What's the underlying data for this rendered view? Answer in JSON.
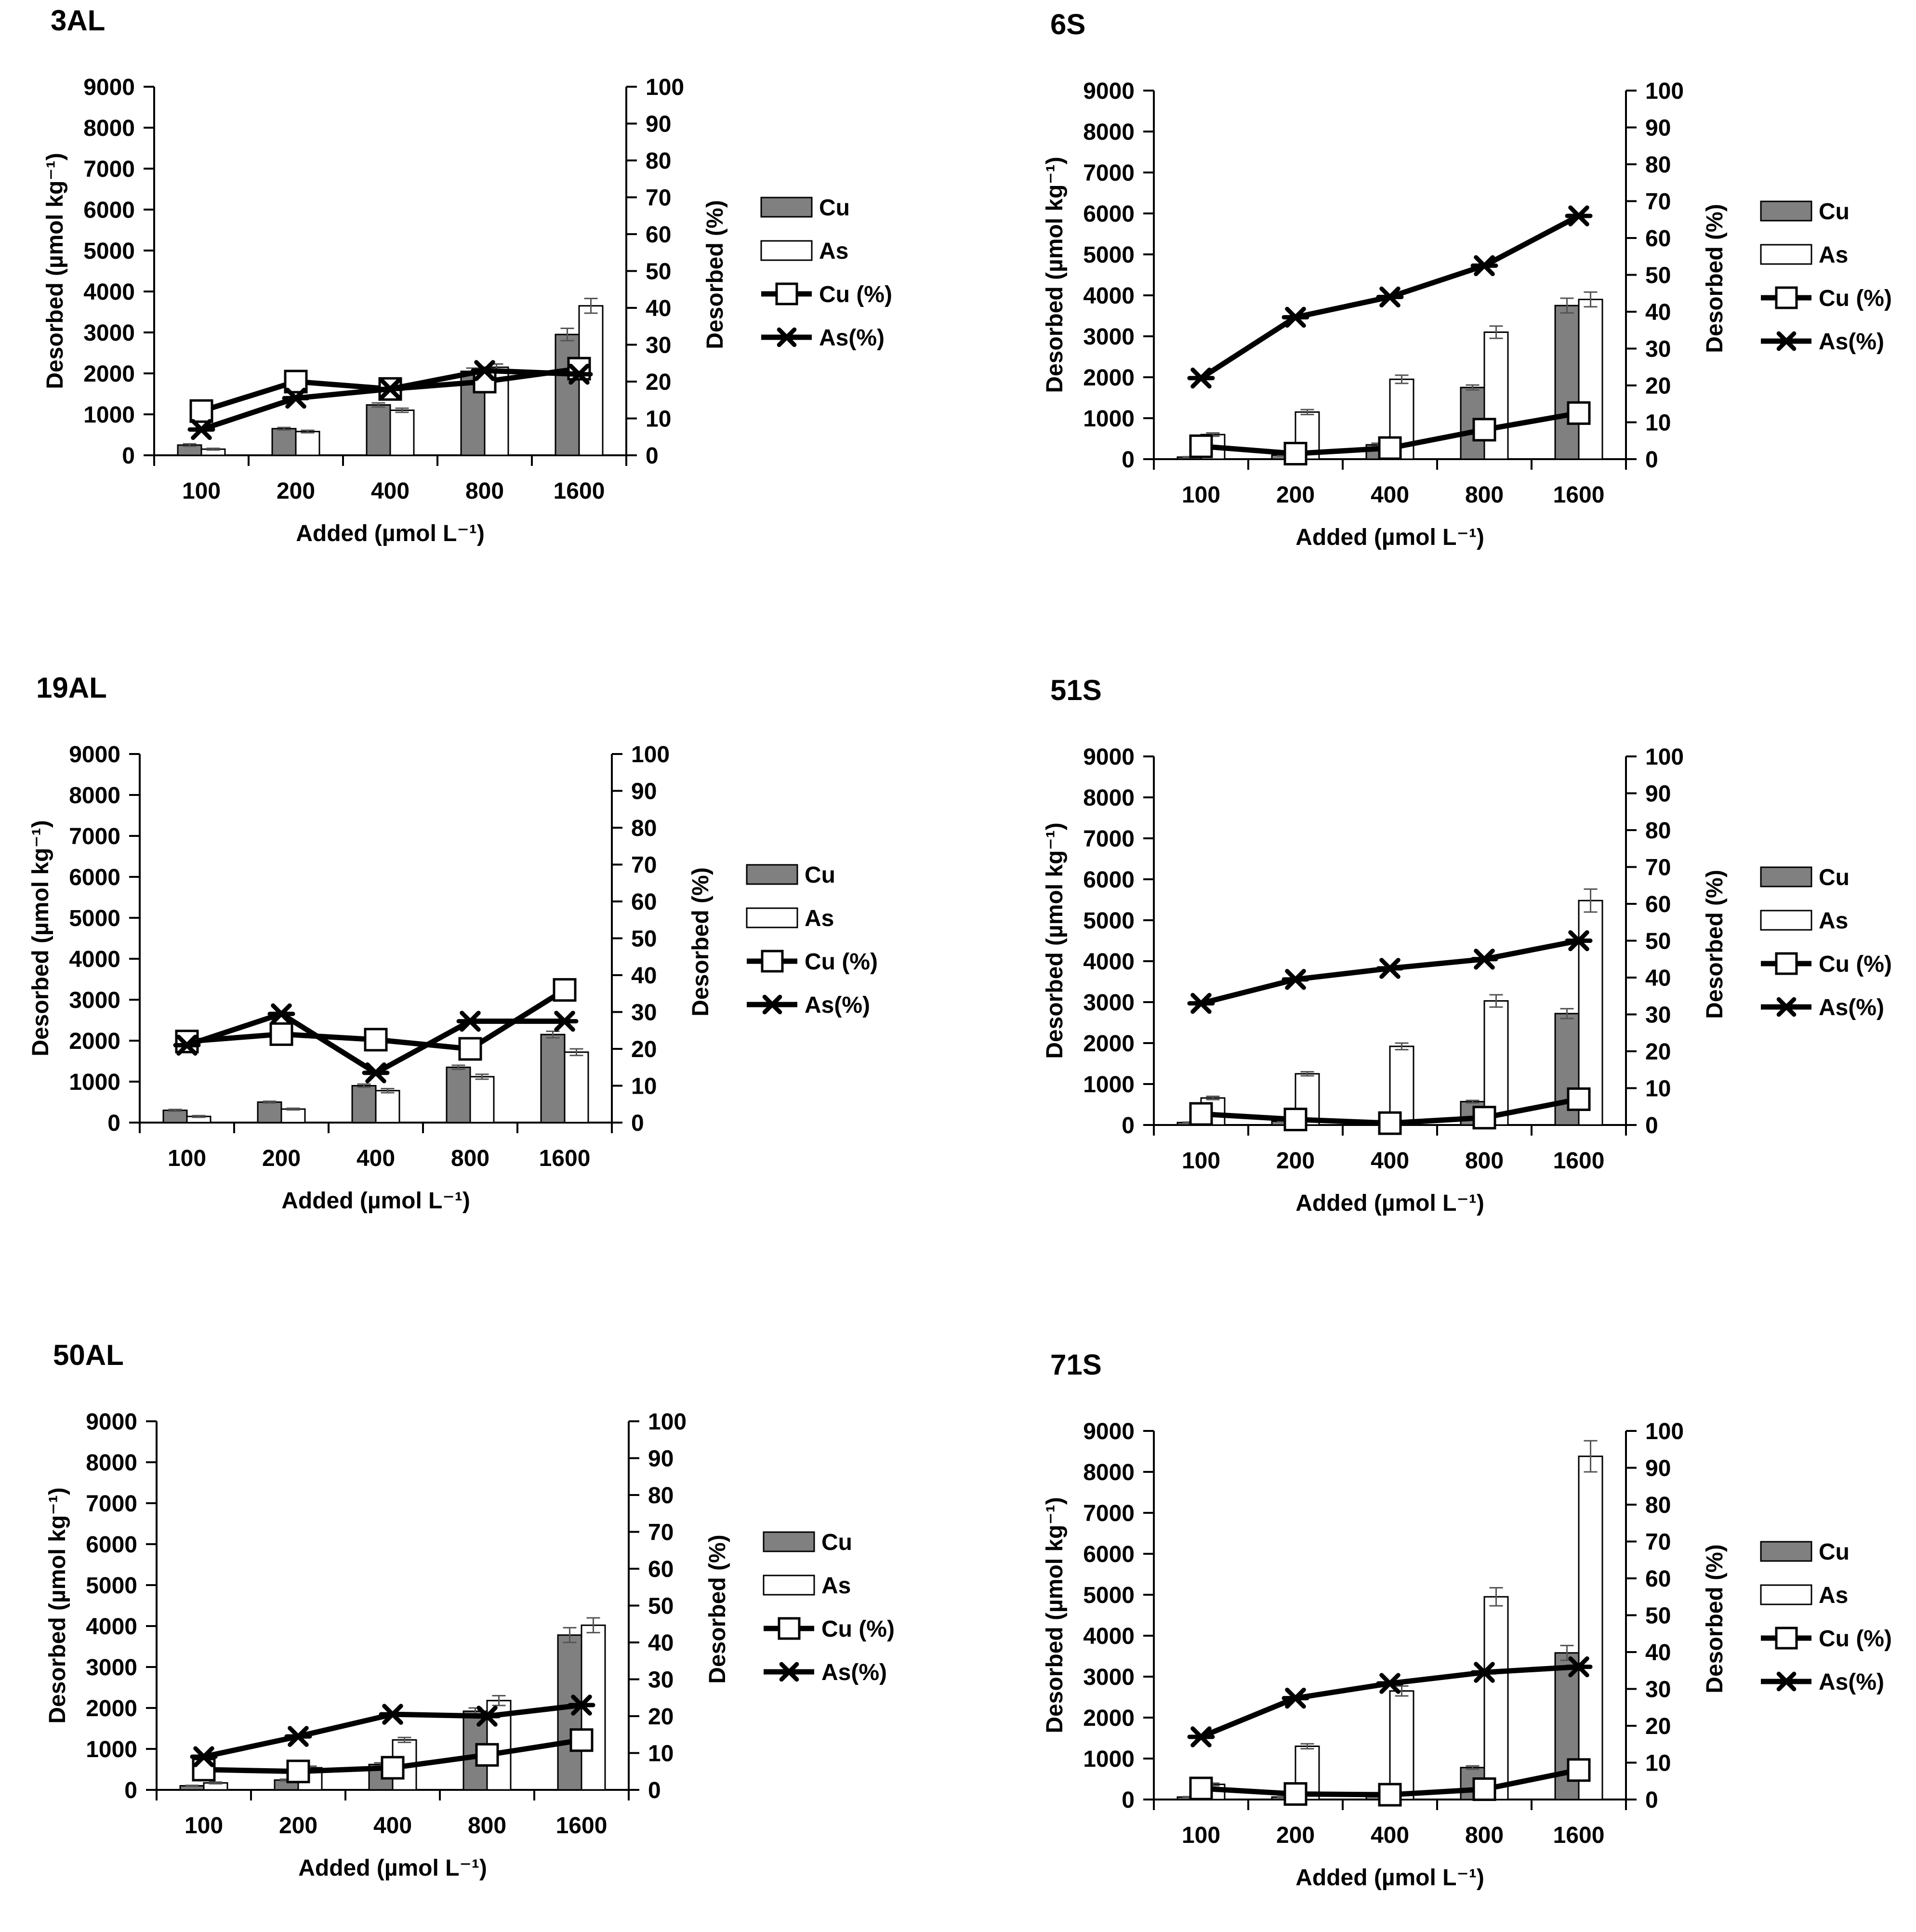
{
  "figure": {
    "legend": {
      "cu": "Cu",
      "as": "As",
      "cu_pct": "Cu (%)",
      "as_pct": "As(%)"
    },
    "colors": {
      "cu_bar": "#808080",
      "as_bar": "#ffffff",
      "line": "#000000",
      "axis": "#000000"
    }
  },
  "chart_data": [
    {
      "id": "3AL",
      "title": "3AL",
      "type": "bar",
      "categories": [
        "100",
        "200",
        "400",
        "800",
        "1600"
      ],
      "xlabel": "Added (µmol L⁻¹)",
      "ylabel": "Desorbed (µmol kg⁻¹)",
      "y2label": "Desorbed (%)",
      "ylim": [
        0,
        9000
      ],
      "y2lim": [
        0,
        100
      ],
      "yticks": [
        "0",
        "1000",
        "2000",
        "3000",
        "4000",
        "5000",
        "6000",
        "7000",
        "8000",
        "9000"
      ],
      "y2ticks": [
        "0",
        "10",
        "20",
        "30",
        "40",
        "50",
        "60",
        "70",
        "80",
        "90",
        "100"
      ],
      "series": [
        {
          "name": "Cu",
          "kind": "bar",
          "axis": "left",
          "values": [
            250,
            650,
            1230,
            2050,
            2950
          ],
          "errors": [
            30,
            30,
            50,
            80,
            150
          ]
        },
        {
          "name": "As",
          "kind": "bar",
          "axis": "left",
          "values": [
            150,
            580,
            1100,
            2150,
            3650
          ],
          "errors": [
            20,
            30,
            50,
            80,
            180
          ]
        },
        {
          "name": "Cu (%)",
          "kind": "line",
          "axis": "right",
          "marker": "square",
          "values": [
            12,
            20,
            18,
            20,
            23.5
          ]
        },
        {
          "name": "As(%)",
          "kind": "line",
          "axis": "right",
          "marker": "star",
          "values": [
            7,
            15.5,
            18,
            23,
            22
          ]
        }
      ]
    },
    {
      "id": "6S",
      "title": "6S",
      "type": "bar",
      "categories": [
        "100",
        "200",
        "400",
        "800",
        "1600"
      ],
      "xlabel": "Added (µmol L⁻¹)",
      "ylabel": "Desorbed (µmol kg⁻¹)",
      "y2label": "Desorbed (%)",
      "ylim": [
        0,
        9000
      ],
      "y2lim": [
        0,
        100
      ],
      "yticks": [
        "0",
        "1000",
        "2000",
        "3000",
        "4000",
        "5000",
        "6000",
        "7000",
        "8000",
        "9000"
      ],
      "y2ticks": [
        "0",
        "10",
        "20",
        "30",
        "40",
        "50",
        "60",
        "70",
        "80",
        "90",
        "100"
      ],
      "series": [
        {
          "name": "Cu",
          "kind": "bar",
          "axis": "left",
          "values": [
            50,
            100,
            350,
            1750,
            3750
          ],
          "errors": [
            10,
            20,
            40,
            60,
            180
          ]
        },
        {
          "name": "As",
          "kind": "bar",
          "axis": "left",
          "values": [
            600,
            1150,
            1950,
            3100,
            3900
          ],
          "errors": [
            40,
            60,
            100,
            150,
            180
          ]
        },
        {
          "name": "Cu (%)",
          "kind": "line",
          "axis": "right",
          "marker": "square",
          "values": [
            3.5,
            1.5,
            3,
            8,
            12.5
          ]
        },
        {
          "name": "As(%)",
          "kind": "line",
          "axis": "right",
          "marker": "star",
          "values": [
            22,
            38.5,
            44,
            52.5,
            66
          ]
        }
      ]
    },
    {
      "id": "19AL",
      "title": "19AL",
      "type": "bar",
      "categories": [
        "100",
        "200",
        "400",
        "800",
        "1600"
      ],
      "xlabel": "Added (µmol L⁻¹)",
      "ylabel": "Desorbed (µmol kg⁻¹)",
      "y2label": "Desorbed (%)",
      "ylim": [
        0,
        9000
      ],
      "y2lim": [
        0,
        100
      ],
      "yticks": [
        "0",
        "1000",
        "2000",
        "3000",
        "4000",
        "5000",
        "6000",
        "7000",
        "8000",
        "9000"
      ],
      "y2ticks": [
        "0",
        "10",
        "20",
        "30",
        "40",
        "50",
        "60",
        "70",
        "80",
        "90",
        "100"
      ],
      "series": [
        {
          "name": "Cu",
          "kind": "bar",
          "axis": "left",
          "values": [
            300,
            500,
            900,
            1350,
            2150
          ],
          "errors": [
            20,
            20,
            40,
            50,
            80
          ]
        },
        {
          "name": "As",
          "kind": "bar",
          "axis": "left",
          "values": [
            150,
            330,
            780,
            1120,
            1720
          ],
          "errors": [
            20,
            20,
            50,
            60,
            80
          ]
        },
        {
          "name": "Cu (%)",
          "kind": "line",
          "axis": "right",
          "marker": "square",
          "values": [
            22,
            24,
            22.5,
            20,
            36
          ]
        },
        {
          "name": "As(%)",
          "kind": "line",
          "axis": "right",
          "marker": "star",
          "values": [
            21,
            29.5,
            13.5,
            27.5,
            27.5
          ]
        }
      ]
    },
    {
      "id": "51S",
      "title": "51S",
      "type": "bar",
      "categories": [
        "100",
        "200",
        "400",
        "800",
        "1600"
      ],
      "xlabel": "Added (µmol L⁻¹)",
      "ylabel": "Desorbed (µmol kg⁻¹)",
      "y2label": "Desorbed (%)",
      "ylim": [
        0,
        9000
      ],
      "y2lim": [
        0,
        100
      ],
      "yticks": [
        "0",
        "1000",
        "2000",
        "3000",
        "4000",
        "5000",
        "6000",
        "7000",
        "8000",
        "9000"
      ],
      "y2ticks": [
        "0",
        "10",
        "20",
        "30",
        "40",
        "50",
        "60",
        "70",
        "80",
        "90",
        "100"
      ],
      "series": [
        {
          "name": "Cu",
          "kind": "bar",
          "axis": "left",
          "values": [
            60,
            90,
            70,
            570,
            2720
          ],
          "errors": [
            10,
            10,
            10,
            30,
            120
          ]
        },
        {
          "name": "As",
          "kind": "bar",
          "axis": "left",
          "values": [
            660,
            1250,
            1920,
            3030,
            5480
          ],
          "errors": [
            40,
            50,
            80,
            150,
            280
          ]
        },
        {
          "name": "Cu (%)",
          "kind": "line",
          "axis": "right",
          "marker": "square",
          "values": [
            3,
            1.5,
            0.5,
            2,
            7
          ]
        },
        {
          "name": "As(%)",
          "kind": "line",
          "axis": "right",
          "marker": "star",
          "values": [
            33,
            39.5,
            42.5,
            45,
            50
          ]
        }
      ]
    },
    {
      "id": "50AL",
      "title": "50AL",
      "type": "bar",
      "categories": [
        "100",
        "200",
        "400",
        "800",
        "1600"
      ],
      "xlabel": "Added (µmol L⁻¹)",
      "ylabel": "Desorbed (µmol kg⁻¹)",
      "y2label": "Desorbed (%)",
      "ylim": [
        0,
        9000
      ],
      "y2lim": [
        0,
        100
      ],
      "yticks": [
        "0",
        "1000",
        "2000",
        "3000",
        "4000",
        "5000",
        "6000",
        "7000",
        "8000",
        "9000"
      ],
      "y2ticks": [
        "0",
        "10",
        "20",
        "30",
        "40",
        "50",
        "60",
        "70",
        "80",
        "90",
        "100"
      ],
      "series": [
        {
          "name": "Cu",
          "kind": "bar",
          "axis": "left",
          "values": [
            100,
            240,
            620,
            1920,
            3780
          ],
          "errors": [
            10,
            20,
            40,
            80,
            180
          ]
        },
        {
          "name": "As",
          "kind": "bar",
          "axis": "left",
          "values": [
            170,
            540,
            1220,
            2180,
            4020
          ],
          "errors": [
            20,
            40,
            60,
            120,
            180
          ]
        },
        {
          "name": "Cu (%)",
          "kind": "line",
          "axis": "right",
          "marker": "square",
          "values": [
            5.5,
            5,
            6,
            9.5,
            13.5
          ]
        },
        {
          "name": "As(%)",
          "kind": "line",
          "axis": "right",
          "marker": "star",
          "values": [
            9,
            14.5,
            20.5,
            20,
            23
          ]
        }
      ]
    },
    {
      "id": "71S",
      "title": "71S",
      "type": "bar",
      "categories": [
        "100",
        "200",
        "400",
        "800",
        "1600"
      ],
      "xlabel": "Added (µmol L⁻¹)",
      "ylabel": "Desorbed (µmol kg⁻¹)",
      "y2label": "Desorbed (%)",
      "ylim": [
        0,
        9000
      ],
      "y2lim": [
        0,
        100
      ],
      "yticks": [
        "0",
        "1000",
        "2000",
        "3000",
        "4000",
        "5000",
        "6000",
        "7000",
        "8000",
        "9000"
      ],
      "y2ticks": [
        "0",
        "10",
        "20",
        "30",
        "40",
        "50",
        "60",
        "70",
        "80",
        "90",
        "100"
      ],
      "series": [
        {
          "name": "Cu",
          "kind": "bar",
          "axis": "left",
          "values": [
            60,
            60,
            120,
            780,
            3580
          ],
          "errors": [
            10,
            10,
            20,
            40,
            180
          ]
        },
        {
          "name": "As",
          "kind": "bar",
          "axis": "left",
          "values": [
            370,
            1300,
            2650,
            4950,
            8380
          ],
          "errors": [
            30,
            60,
            120,
            220,
            380
          ]
        },
        {
          "name": "Cu (%)",
          "kind": "line",
          "axis": "right",
          "marker": "square",
          "values": [
            3,
            1.5,
            1.3,
            2.8,
            8
          ]
        },
        {
          "name": "As(%)",
          "kind": "line",
          "axis": "right",
          "marker": "star",
          "values": [
            17,
            27.5,
            31.5,
            34.5,
            36
          ]
        }
      ]
    }
  ]
}
